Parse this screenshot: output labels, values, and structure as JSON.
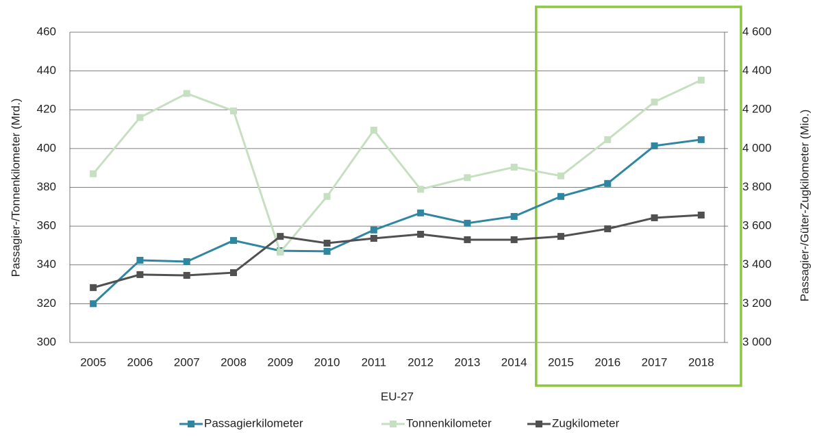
{
  "chart_data": {
    "type": "line",
    "xlabel": "EU-27",
    "ylabel": "Passagier-/Tonnenkilometer (Mrd.)",
    "y2label": "Passagier-/Güter-Zugkilometer (Mio.)",
    "categories": [
      "2005",
      "2006",
      "2007",
      "2008",
      "2009",
      "2010",
      "2011",
      "2012",
      "2013",
      "2014",
      "2015",
      "2016",
      "2017",
      "2018"
    ],
    "series": [
      {
        "name": "Passagierkilometer",
        "color": "#2e86a0",
        "values": [
          320,
          342.4,
          341.7,
          352.6,
          347.3,
          347,
          358,
          366.8,
          361.5,
          365,
          375.3,
          382,
          401.4,
          404.6
        ]
      },
      {
        "name": "Tonnenkilometer",
        "color": "#c6dfc0",
        "values": [
          387,
          416,
          428.4,
          419.4,
          346.6,
          375.3,
          409.5,
          379,
          385,
          390.4,
          385.9,
          404.6,
          424,
          435.3
        ]
      },
      {
        "name": "Zugkilometer",
        "color": "#505050",
        "axis": "y2",
        "values": [
          3283,
          3350,
          3346,
          3360,
          3547,
          3512,
          3537,
          3558,
          3530,
          3530,
          3547,
          3586,
          3643,
          3657
        ]
      }
    ],
    "ylim": [
      300,
      460
    ],
    "yticks": [
      300,
      320,
      340,
      360,
      380,
      400,
      420,
      440,
      460
    ],
    "y2lim": [
      3000,
      4600
    ],
    "y2ticks": [
      {
        "value": 3000,
        "label": "3 000"
      },
      {
        "value": 3200,
        "label": "3 200"
      },
      {
        "value": 3400,
        "label": "3 400"
      },
      {
        "value": 3600,
        "label": "3 600"
      },
      {
        "value": 3800,
        "label": "3 800"
      },
      {
        "value": 4000,
        "label": "4 000"
      },
      {
        "value": 4200,
        "label": "4 200"
      },
      {
        "value": 4400,
        "label": "4 400"
      },
      {
        "value": 4600,
        "label": "4 600"
      }
    ],
    "grid": true,
    "legend": "bottom"
  }
}
